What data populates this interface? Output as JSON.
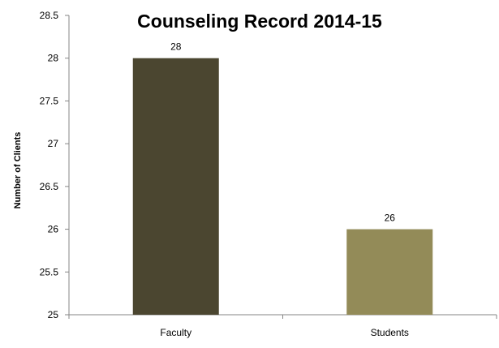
{
  "chart_data": {
    "type": "bar",
    "title": "Counseling Record 2014-15",
    "xlabel": "",
    "ylabel": "Number of Clients",
    "categories": [
      "Faculty",
      "Students"
    ],
    "values": [
      28,
      26
    ],
    "data_labels": [
      "28",
      "26"
    ],
    "bar_colors": [
      "#4b4630",
      "#938b58"
    ],
    "ylim": [
      25,
      28.5
    ],
    "y_ticks": [
      25,
      25.5,
      26,
      26.5,
      27,
      27.5,
      28,
      28.5
    ],
    "y_tick_labels": [
      "25",
      "25.5",
      "26",
      "26.5",
      "27",
      "27.5",
      "28",
      "28.5"
    ],
    "grid": false,
    "legend": "none",
    "axis_color": "#868686"
  }
}
